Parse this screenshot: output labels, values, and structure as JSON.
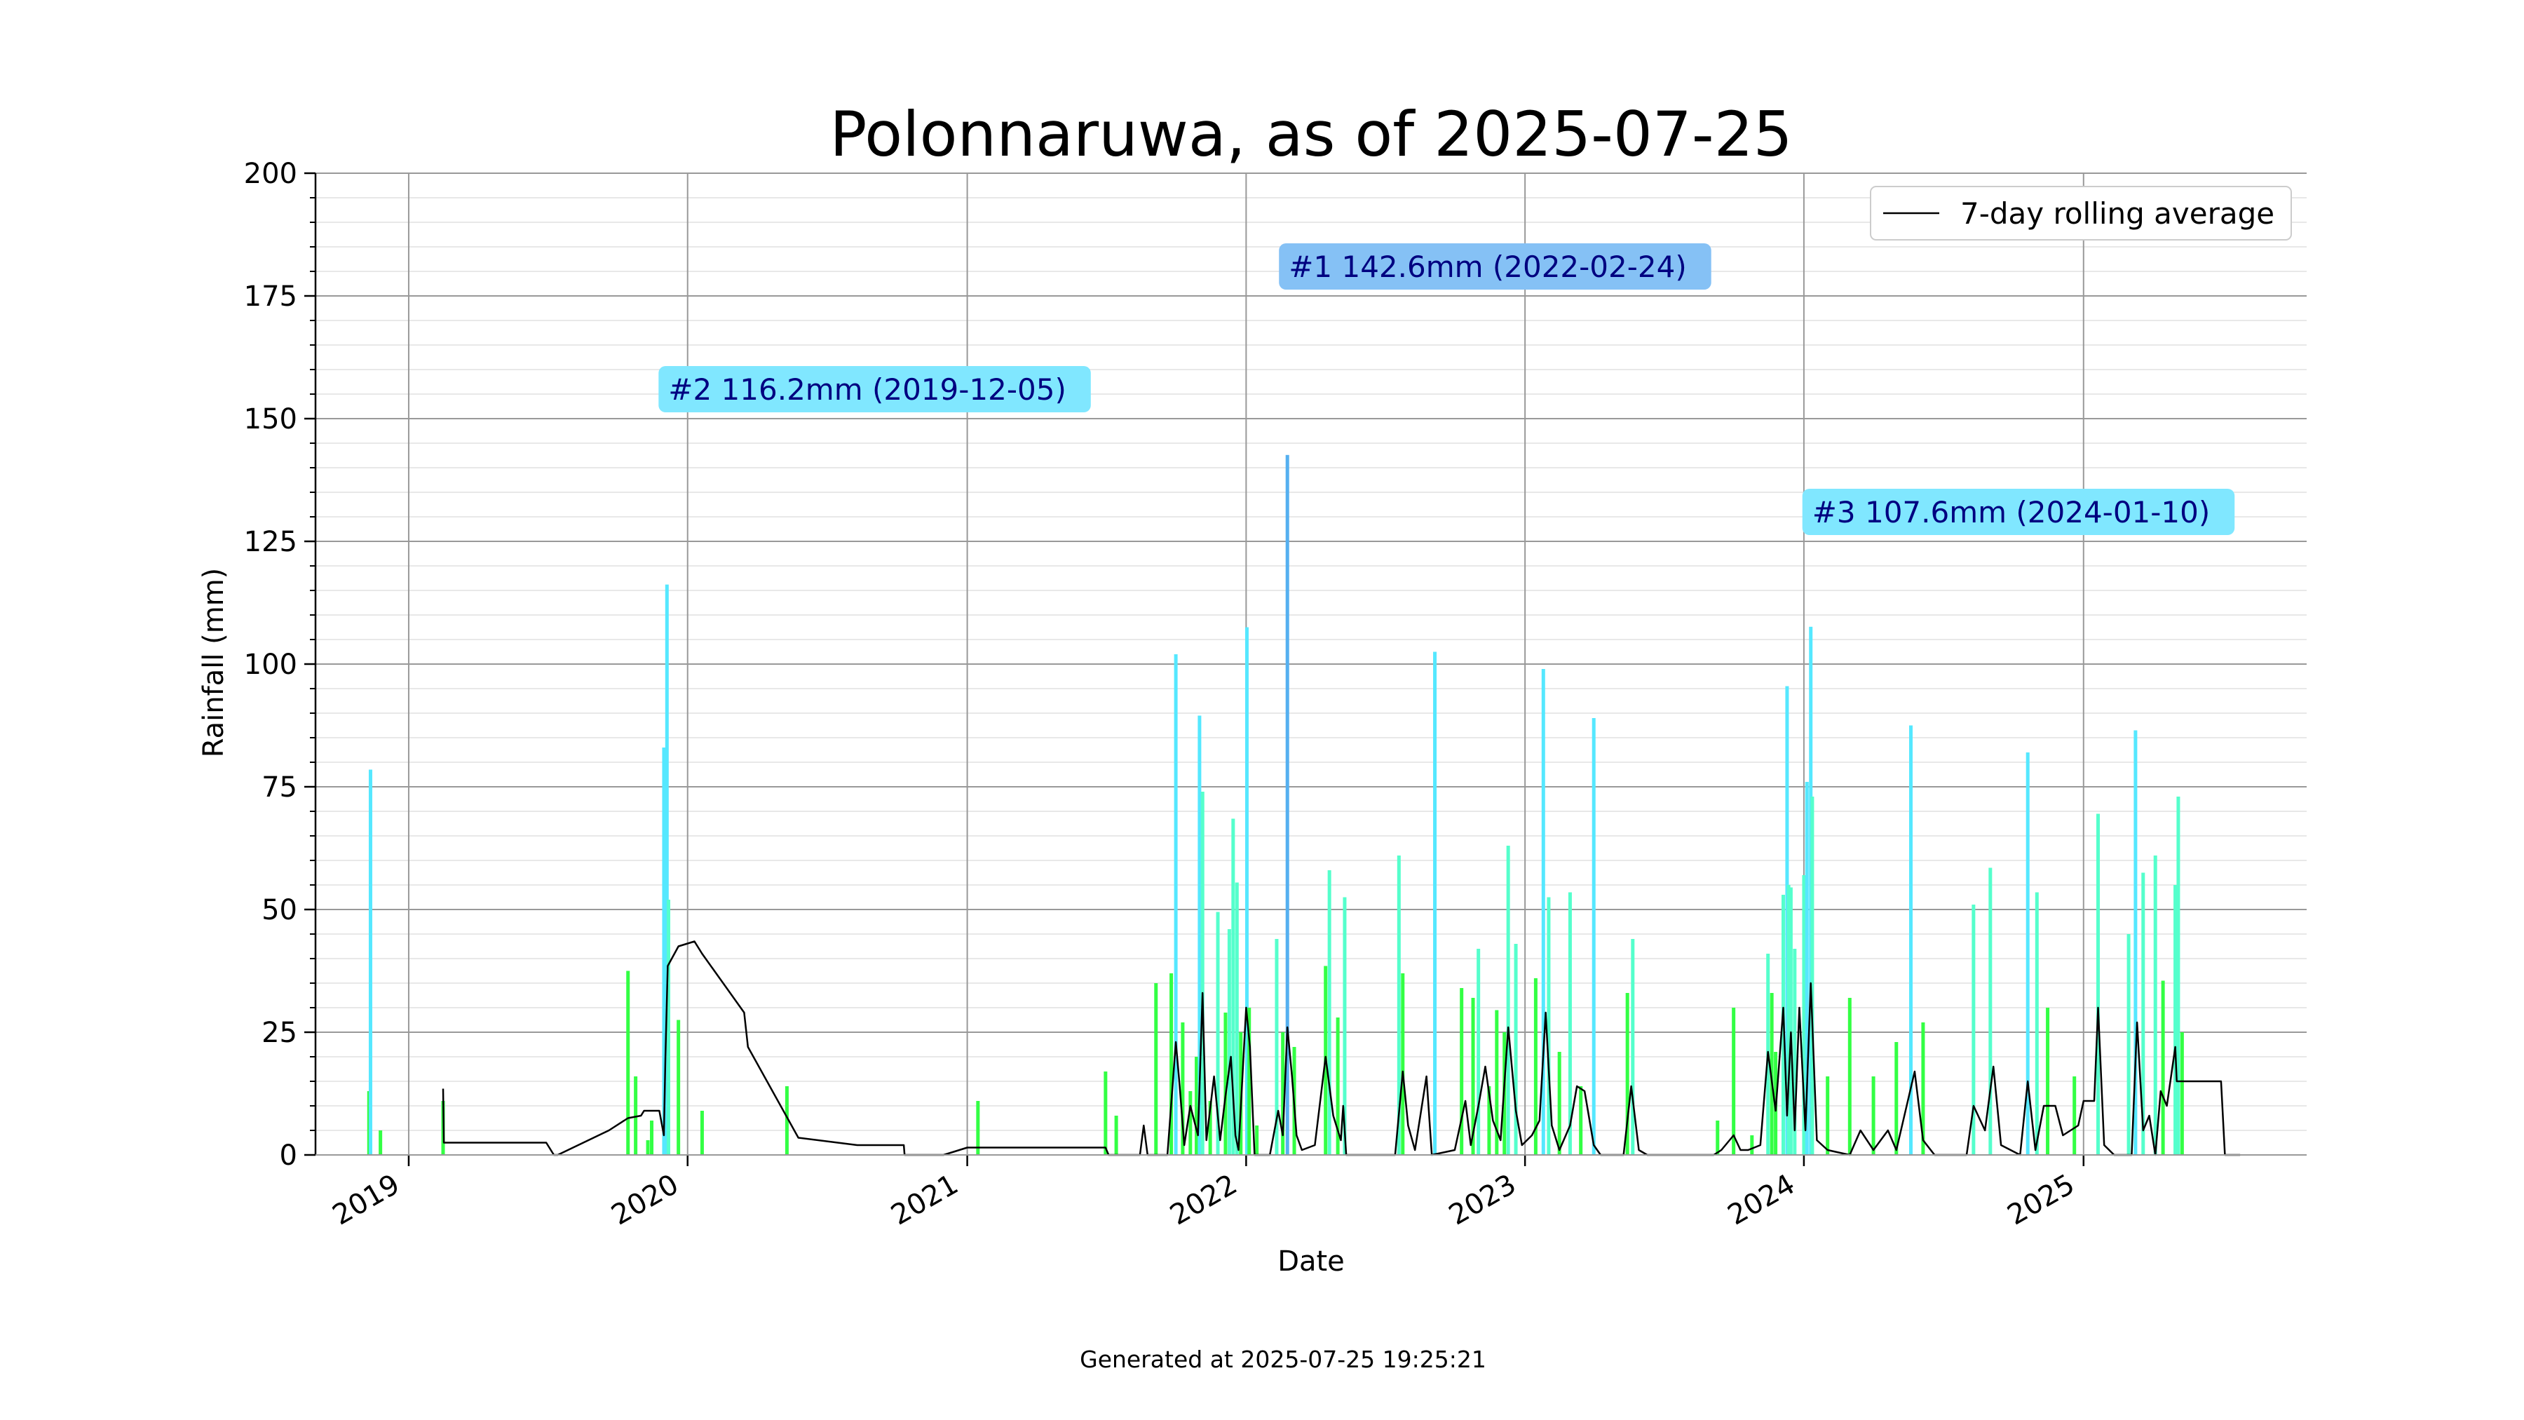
{
  "chart_data": {
    "type": "bar",
    "title": "Polonnaruwa, as of 2025-07-25",
    "xlabel": "Date",
    "ylabel": "Rainfall (mm)",
    "xlim": [
      "2018-09-01",
      "2025-10-20"
    ],
    "ylim": [
      0,
      200
    ],
    "yticks": [
      0,
      25,
      50,
      75,
      100,
      125,
      150,
      175,
      200
    ],
    "yticklabels": [
      "0",
      "25",
      "50",
      "75",
      "100",
      "125",
      "150",
      "175",
      "200"
    ],
    "xticks": [
      "2019-01-01",
      "2020-01-01",
      "2021-01-01",
      "2022-01-01",
      "2023-01-01",
      "2024-01-01",
      "2025-01-01"
    ],
    "xticklabels": [
      "2019",
      "2020",
      "2021",
      "2022",
      "2023",
      "2024",
      "2025"
    ],
    "grid": true,
    "legend": {
      "placement": "top-right",
      "entries": [
        "7-day rolling average"
      ]
    },
    "series": [
      {
        "name": "Daily rainfall",
        "kind": "bar",
        "points": [
          [
            "2018-11-10",
            13
          ],
          [
            "2018-11-12",
            78.5
          ],
          [
            "2018-11-25",
            5
          ],
          [
            "2019-02-15",
            11
          ],
          [
            "2019-10-15",
            37.5
          ],
          [
            "2019-10-25",
            16
          ],
          [
            "2019-11-10",
            3
          ],
          [
            "2019-11-15",
            7
          ],
          [
            "2019-12-01",
            83
          ],
          [
            "2019-12-05",
            116.2
          ],
          [
            "2019-12-07",
            52
          ],
          [
            "2019-12-20",
            27.5
          ],
          [
            "2020-01-20",
            9
          ],
          [
            "2020-05-10",
            14
          ],
          [
            "2021-01-15",
            11
          ],
          [
            "2021-07-01",
            17
          ],
          [
            "2021-07-15",
            8
          ],
          [
            "2021-09-05",
            35
          ],
          [
            "2021-09-25",
            37
          ],
          [
            "2021-10-01",
            102
          ],
          [
            "2021-10-10",
            27
          ],
          [
            "2021-10-20",
            13
          ],
          [
            "2021-10-28",
            20
          ],
          [
            "2021-11-01",
            89.5
          ],
          [
            "2021-11-05",
            74
          ],
          [
            "2021-11-15",
            11
          ],
          [
            "2021-11-25",
            49.5
          ],
          [
            "2021-12-05",
            29
          ],
          [
            "2021-12-10",
            46
          ],
          [
            "2021-12-15",
            68.5
          ],
          [
            "2021-12-20",
            55.5
          ],
          [
            "2021-12-25",
            25
          ],
          [
            "2022-01-02",
            107.5
          ],
          [
            "2022-01-05",
            30
          ],
          [
            "2022-01-15",
            6
          ],
          [
            "2022-02-10",
            44
          ],
          [
            "2022-02-18",
            25
          ],
          [
            "2022-02-24",
            142.6
          ],
          [
            "2022-03-05",
            22
          ],
          [
            "2022-04-15",
            38.5
          ],
          [
            "2022-04-20",
            58
          ],
          [
            "2022-05-01",
            28
          ],
          [
            "2022-05-10",
            52.5
          ],
          [
            "2022-07-20",
            61
          ],
          [
            "2022-07-25",
            37
          ],
          [
            "2022-09-05",
            102.5
          ],
          [
            "2022-10-10",
            34
          ],
          [
            "2022-10-25",
            32
          ],
          [
            "2022-11-01",
            42
          ],
          [
            "2022-11-15",
            14
          ],
          [
            "2022-11-25",
            29.5
          ],
          [
            "2022-12-05",
            25
          ],
          [
            "2022-12-10",
            63
          ],
          [
            "2022-12-20",
            43
          ],
          [
            "2023-01-15",
            36
          ],
          [
            "2023-01-25",
            99
          ],
          [
            "2023-02-01",
            52.5
          ],
          [
            "2023-02-15",
            21
          ],
          [
            "2023-03-01",
            53.5
          ],
          [
            "2023-03-15",
            14
          ],
          [
            "2023-04-01",
            89
          ],
          [
            "2023-05-15",
            33
          ],
          [
            "2023-05-22",
            44
          ],
          [
            "2023-09-10",
            7
          ],
          [
            "2023-10-01",
            30
          ],
          [
            "2023-10-25",
            4
          ],
          [
            "2023-11-15",
            41
          ],
          [
            "2023-11-20",
            33
          ],
          [
            "2023-11-25",
            21
          ],
          [
            "2023-12-05",
            53
          ],
          [
            "2023-12-10",
            95.5
          ],
          [
            "2023-12-12",
            55
          ],
          [
            "2023-12-15",
            54.5
          ],
          [
            "2023-12-20",
            42
          ],
          [
            "2024-01-01",
            57
          ],
          [
            "2024-01-05",
            76
          ],
          [
            "2024-01-10",
            107.6
          ],
          [
            "2024-01-12",
            73
          ],
          [
            "2024-02-01",
            16
          ],
          [
            "2024-03-01",
            32
          ],
          [
            "2024-04-01",
            16
          ],
          [
            "2024-05-01",
            23
          ],
          [
            "2024-05-20",
            87.5
          ],
          [
            "2024-06-05",
            27
          ],
          [
            "2024-08-10",
            51
          ],
          [
            "2024-09-01",
            58.5
          ],
          [
            "2024-10-20",
            82
          ],
          [
            "2024-11-01",
            53.5
          ],
          [
            "2024-11-15",
            30
          ],
          [
            "2024-12-20",
            16
          ],
          [
            "2025-01-20",
            69.5
          ],
          [
            "2025-03-01",
            45
          ],
          [
            "2025-03-10",
            86.5
          ],
          [
            "2025-03-20",
            57.5
          ],
          [
            "2025-04-05",
            61
          ],
          [
            "2025-04-15",
            35.5
          ],
          [
            "2025-05-01",
            55
          ],
          [
            "2025-05-05",
            73
          ],
          [
            "2025-05-10",
            25
          ]
        ]
      },
      {
        "name": "7-day rolling average",
        "kind": "line",
        "points": [
          [
            "2019-02-15",
            13.5
          ],
          [
            "2019-02-16",
            2.5
          ],
          [
            "2019-06-30",
            2.5
          ],
          [
            "2019-07-10",
            0
          ],
          [
            "2019-07-15",
            0
          ],
          [
            "2019-09-20",
            5
          ],
          [
            "2019-10-15",
            7.5
          ],
          [
            "2019-11-01",
            8
          ],
          [
            "2019-11-05",
            9
          ],
          [
            "2019-11-25",
            9
          ],
          [
            "2019-12-01",
            4
          ],
          [
            "2019-12-03",
            20
          ],
          [
            "2019-12-06",
            38.5
          ],
          [
            "2019-12-20",
            42.5
          ],
          [
            "2020-01-10",
            43.5
          ],
          [
            "2020-01-20",
            41
          ],
          [
            "2020-03-15",
            29
          ],
          [
            "2020-03-20",
            22
          ],
          [
            "2020-05-25",
            3.5
          ],
          [
            "2020-08-10",
            2
          ],
          [
            "2020-10-10",
            2
          ],
          [
            "2020-10-11",
            0
          ],
          [
            "2020-12-01",
            0
          ],
          [
            "2021-01-01",
            1.5
          ],
          [
            "2021-07-01",
            1.5
          ],
          [
            "2021-07-05",
            0
          ],
          [
            "2021-08-15",
            0
          ],
          [
            "2021-08-20",
            6
          ],
          [
            "2021-08-25",
            0
          ],
          [
            "2021-09-20",
            0
          ],
          [
            "2021-10-01",
            23
          ],
          [
            "2021-10-06",
            14
          ],
          [
            "2021-10-12",
            2
          ],
          [
            "2021-10-20",
            10
          ],
          [
            "2021-10-30",
            4
          ],
          [
            "2021-11-05",
            33
          ],
          [
            "2021-11-10",
            3
          ],
          [
            "2021-11-20",
            16
          ],
          [
            "2021-11-28",
            3
          ],
          [
            "2021-12-05",
            12
          ],
          [
            "2021-12-12",
            20
          ],
          [
            "2021-12-18",
            4
          ],
          [
            "2021-12-22",
            1
          ],
          [
            "2022-01-01",
            30
          ],
          [
            "2022-01-06",
            22
          ],
          [
            "2022-01-12",
            0
          ],
          [
            "2022-02-01",
            0
          ],
          [
            "2022-02-12",
            9
          ],
          [
            "2022-02-18",
            4
          ],
          [
            "2022-02-24",
            26
          ],
          [
            "2022-03-02",
            16
          ],
          [
            "2022-03-08",
            4
          ],
          [
            "2022-03-15",
            1
          ],
          [
            "2022-04-01",
            2
          ],
          [
            "2022-04-15",
            20
          ],
          [
            "2022-04-25",
            8
          ],
          [
            "2022-05-05",
            3
          ],
          [
            "2022-05-08",
            10
          ],
          [
            "2022-05-12",
            0
          ],
          [
            "2022-07-15",
            0
          ],
          [
            "2022-07-25",
            17
          ],
          [
            "2022-08-01",
            6
          ],
          [
            "2022-08-10",
            1
          ],
          [
            "2022-08-25",
            16
          ],
          [
            "2022-09-01",
            0
          ],
          [
            "2022-10-01",
            1
          ],
          [
            "2022-10-15",
            11
          ],
          [
            "2022-10-22",
            2
          ],
          [
            "2022-11-01",
            10
          ],
          [
            "2022-11-10",
            18
          ],
          [
            "2022-11-20",
            7
          ],
          [
            "2022-11-30",
            3
          ],
          [
            "2022-12-10",
            26
          ],
          [
            "2022-12-20",
            9
          ],
          [
            "2022-12-28",
            2
          ],
          [
            "2023-01-10",
            4
          ],
          [
            "2023-01-20",
            7
          ],
          [
            "2023-01-28",
            29
          ],
          [
            "2023-02-05",
            6
          ],
          [
            "2023-02-15",
            1
          ],
          [
            "2023-03-01",
            6
          ],
          [
            "2023-03-10",
            14
          ],
          [
            "2023-03-20",
            13
          ],
          [
            "2023-04-01",
            2
          ],
          [
            "2023-04-10",
            0
          ],
          [
            "2023-05-10",
            0
          ],
          [
            "2023-05-20",
            14
          ],
          [
            "2023-05-30",
            1
          ],
          [
            "2023-06-10",
            0
          ],
          [
            "2023-09-05",
            0
          ],
          [
            "2023-09-15",
            1
          ],
          [
            "2023-10-01",
            4
          ],
          [
            "2023-10-10",
            1
          ],
          [
            "2023-10-20",
            1
          ],
          [
            "2023-11-05",
            2
          ],
          [
            "2023-11-15",
            21
          ],
          [
            "2023-11-25",
            9
          ],
          [
            "2023-12-05",
            30
          ],
          [
            "2023-12-10",
            8
          ],
          [
            "2023-12-15",
            25
          ],
          [
            "2023-12-20",
            5
          ],
          [
            "2023-12-26",
            30
          ],
          [
            "2024-01-03",
            5
          ],
          [
            "2024-01-10",
            35
          ],
          [
            "2024-01-18",
            3
          ],
          [
            "2024-02-01",
            1
          ],
          [
            "2024-03-01",
            0
          ],
          [
            "2024-03-15",
            5
          ],
          [
            "2024-04-01",
            1
          ],
          [
            "2024-04-20",
            5
          ],
          [
            "2024-05-01",
            1
          ],
          [
            "2024-05-25",
            17
          ],
          [
            "2024-06-05",
            3
          ],
          [
            "2024-06-20",
            0
          ],
          [
            "2024-08-01",
            0
          ],
          [
            "2024-08-10",
            10
          ],
          [
            "2024-08-25",
            5
          ],
          [
            "2024-09-05",
            18
          ],
          [
            "2024-09-15",
            2
          ],
          [
            "2024-10-10",
            0
          ],
          [
            "2024-10-20",
            15
          ],
          [
            "2024-10-30",
            1
          ],
          [
            "2024-11-10",
            10
          ],
          [
            "2024-11-25",
            10
          ],
          [
            "2024-12-05",
            4
          ],
          [
            "2024-12-25",
            6
          ],
          [
            "2025-01-01",
            11
          ],
          [
            "2025-01-15",
            11
          ],
          [
            "2025-01-20",
            30
          ],
          [
            "2025-01-28",
            2
          ],
          [
            "2025-02-10",
            0
          ],
          [
            "2025-03-05",
            0
          ],
          [
            "2025-03-12",
            27
          ],
          [
            "2025-03-20",
            5
          ],
          [
            "2025-03-28",
            8
          ],
          [
            "2025-04-05",
            0
          ],
          [
            "2025-04-12",
            13
          ],
          [
            "2025-04-20",
            10
          ],
          [
            "2025-05-01",
            22
          ],
          [
            "2025-05-03",
            15
          ],
          [
            "2025-06-30",
            15
          ],
          [
            "2025-07-05",
            0
          ],
          [
            "2025-07-25",
            0
          ]
        ]
      }
    ],
    "annotations": [
      {
        "text": "#1 142.6mm (2022-02-24)",
        "color": "#85c1f5",
        "x": "2022-02-24",
        "y": 181
      },
      {
        "text": "#2 116.2mm (2019-12-05)",
        "color": "#80e7ff",
        "x": "2019-12-05",
        "y": 156
      },
      {
        "text": "#3 107.6mm (2024-01-10)",
        "color": "#80e7ff",
        "x": "2024-01-10",
        "y": 131
      }
    ],
    "colors": {
      "bar_low": "#33ff44",
      "bar_mid": "#55ffcc",
      "bar_high": "#55e8ff",
      "bar_top": "#55b0f0",
      "line": "#000000",
      "grid_major": "#999999",
      "grid_minor": "#e8e8e8"
    }
  },
  "footer": "Generated at 2025-07-25 19:25:21"
}
